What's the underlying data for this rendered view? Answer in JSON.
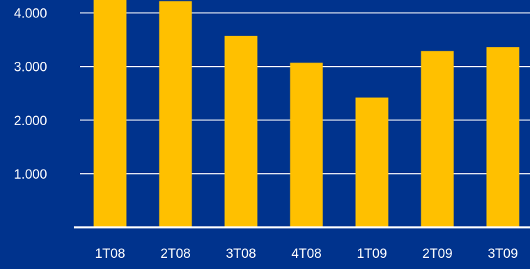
{
  "colors": {
    "background": "#00338D",
    "bar": "#FFC000",
    "gridline": "#FFFFFF",
    "text": "#FFFFFF"
  },
  "chart_data": {
    "type": "bar",
    "title": "",
    "xlabel": "",
    "ylabel": "",
    "categories": [
      "1T08",
      "2T08",
      "3T08",
      "4T08",
      "1T09",
      "2T09",
      "3T09"
    ],
    "values": [
      4450,
      4220,
      3570,
      3070,
      2420,
      3290,
      3360
    ],
    "ylim": [
      0,
      4000
    ],
    "yticks": [
      1000,
      2000,
      3000,
      4000
    ],
    "ytick_labels": [
      "1.000",
      "2.000",
      "3.000",
      "4.000"
    ],
    "grid": true,
    "legend": "none"
  }
}
